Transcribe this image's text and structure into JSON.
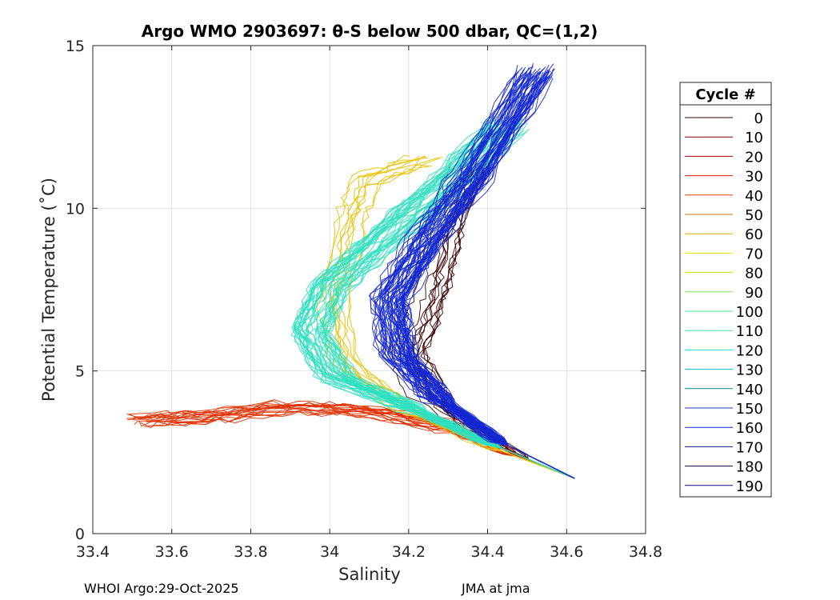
{
  "chart_data": {
    "type": "line",
    "title": "Argo WMO 2903697: θ-S below 500 dbar,  QC=(1,2)",
    "xlabel": "Salinity",
    "ylabel": "Potential Temperature (˚C)",
    "xlim": [
      33.4,
      34.8
    ],
    "ylim": [
      0,
      15
    ],
    "xticks": [
      33.4,
      33.6,
      33.8,
      34,
      34.2,
      34.4,
      34.6,
      34.8
    ],
    "xtick_labels": [
      "33.4",
      "33.6",
      "33.8",
      "34",
      "34.2",
      "34.4",
      "34.6",
      "34.8"
    ],
    "yticks": [
      0,
      5,
      10,
      15
    ],
    "ytick_labels": [
      "0",
      "5",
      "10",
      "15"
    ],
    "grid": true,
    "legend": {
      "title": "Cycle #",
      "placement": "right, outside plot",
      "entries": [
        "0",
        "10",
        "20",
        "30",
        "40",
        "50",
        "60",
        "70",
        "80",
        "90",
        "100",
        "110",
        "120",
        "130",
        "140",
        "150",
        "160",
        "170",
        "180",
        "190"
      ],
      "colors": [
        "#3d0000",
        "#800000",
        "#b30000",
        "#d91a00",
        "#f24000",
        "#cc7a00",
        "#e6a800",
        "#f0e000",
        "#c8e600",
        "#7ee64d",
        "#40f080",
        "#30e6b0",
        "#20e0d0",
        "#10b8c8",
        "#0a8a8a",
        "#1e3cc8",
        "#1428e6",
        "#0a1a9a",
        "#1a0a40",
        "#0a0a80"
      ]
    },
    "series_groups": [
      {
        "cycles": "0-19",
        "color": "#3d0000",
        "points": [
          [
            34.62,
            1.7
          ],
          [
            34.48,
            2.4
          ],
          [
            34.35,
            3.2
          ],
          [
            34.25,
            4.2
          ],
          [
            34.2,
            5.5
          ],
          [
            34.24,
            6.8
          ],
          [
            34.27,
            8.0
          ],
          [
            34.3,
            9.6
          ],
          [
            34.36,
            11.3
          ]
        ]
      },
      {
        "cycles": "20-49",
        "color": "#e03000",
        "points": [
          [
            34.62,
            1.7
          ],
          [
            34.45,
            2.5
          ],
          [
            34.3,
            3.3
          ],
          [
            34.1,
            3.8
          ],
          [
            33.9,
            3.9
          ],
          [
            33.7,
            3.6
          ],
          [
            33.53,
            3.5
          ]
        ]
      },
      {
        "cycles": "50-79",
        "color": "#e8c000",
        "points": [
          [
            34.62,
            1.7
          ],
          [
            34.4,
            2.7
          ],
          [
            34.2,
            3.8
          ],
          [
            34.05,
            5.2
          ],
          [
            34.02,
            7.0
          ],
          [
            34.06,
            9.6
          ],
          [
            34.1,
            10.8
          ],
          [
            34.25,
            11.5
          ]
        ]
      },
      {
        "cycles": "80-139",
        "color": "#30e0c0",
        "points": [
          [
            34.62,
            1.7
          ],
          [
            34.4,
            2.8
          ],
          [
            34.2,
            3.9
          ],
          [
            34.02,
            4.8
          ],
          [
            33.95,
            6.2
          ],
          [
            34.0,
            7.6
          ],
          [
            34.15,
            9.2
          ],
          [
            34.3,
            10.8
          ],
          [
            34.45,
            12.6
          ]
        ]
      },
      {
        "cycles": "140-189",
        "color": "#1428d0",
        "points": [
          [
            34.62,
            1.7
          ],
          [
            34.42,
            2.9
          ],
          [
            34.27,
            4.2
          ],
          [
            34.17,
            5.5
          ],
          [
            34.15,
            7.2
          ],
          [
            34.24,
            9.0
          ],
          [
            34.36,
            11.0
          ],
          [
            34.52,
            14.2
          ]
        ]
      }
    ]
  },
  "footer": {
    "left": "WHOI Argo:29-Oct-2025",
    "right": "JMA at jma"
  }
}
